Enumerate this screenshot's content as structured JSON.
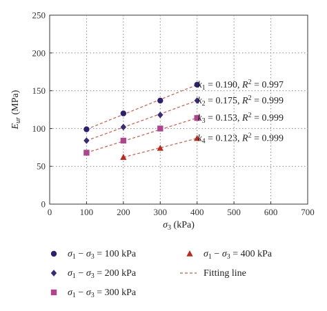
{
  "chart_data": {
    "type": "scatter",
    "xlabel_sym": "σ",
    "xlabel_sub": "3",
    "xlabel_unit": " (kPa)",
    "ylabel_sym": "E",
    "ylabel_sub": "ur",
    "ylabel_unit": " (MPa)",
    "xlim": [
      0,
      700
    ],
    "ylim": [
      0,
      250
    ],
    "xticks": [
      0,
      100,
      200,
      300,
      400,
      500,
      600,
      700
    ],
    "yticks": [
      0,
      50,
      100,
      150,
      200,
      250
    ],
    "grid": true,
    "colors": {
      "s100": "#2b2170",
      "s200": "#3a2a7a",
      "s300": "#b0448f",
      "s400": "#c0281b",
      "fit": "#e0523c"
    },
    "series": [
      {
        "name": "σ1 − σ3 = 100kPa",
        "marker": "circle",
        "color_key": "s100",
        "x": [
          100,
          200,
          300,
          400
        ],
        "y": [
          99,
          120,
          137,
          158
        ],
        "fit": [
          [
            100,
            99
          ],
          [
            400,
            158
          ]
        ]
      },
      {
        "name": "σ1 − σ3 = 200kPa",
        "marker": "diamond",
        "color_key": "s200",
        "x": [
          100,
          200,
          300,
          400
        ],
        "y": [
          84,
          102,
          118,
          137
        ],
        "fit": [
          [
            100,
            84
          ],
          [
            400,
            137
          ]
        ]
      },
      {
        "name": "σ1 − σ3 = 300kPa",
        "marker": "square",
        "color_key": "s300",
        "x": [
          100,
          200,
          300,
          400
        ],
        "y": [
          68,
          84,
          100,
          114
        ],
        "fit": [
          [
            100,
            68
          ],
          [
            400,
            114
          ]
        ]
      },
      {
        "name": "σ1 − σ3 = 400kPa",
        "marker": "triangle",
        "color_key": "s400",
        "x": [
          200,
          300,
          400
        ],
        "y": [
          62,
          74,
          87
        ],
        "fit": [
          [
            200,
            62
          ],
          [
            400,
            87
          ]
        ]
      }
    ],
    "annotations": [
      {
        "k_sub": "1",
        "k_value": "0.190",
        "r2": "0.997",
        "x": 420,
        "y": 158
      },
      {
        "k_sub": "2",
        "k_value": "0.175",
        "r2": "0.999",
        "x": 420,
        "y": 137
      },
      {
        "k_sub": "3",
        "k_value": "0.153",
        "r2": "0.999",
        "x": 420,
        "y": 114
      },
      {
        "k_sub": "4",
        "k_value": "0.123",
        "r2": "0.999",
        "x": 420,
        "y": 87
      }
    ],
    "legend": {
      "items": [
        {
          "marker": "circle",
          "color_key": "s100",
          "pre": "σ",
          "a": "1",
          "mid": " − σ",
          "b": "3",
          "post": " = 100 kPa"
        },
        {
          "marker": "triangle",
          "color_key": "s400",
          "pre": "σ",
          "a": "1",
          "mid": " − σ",
          "b": "3",
          "post": " = 400 kPa"
        },
        {
          "marker": "diamond",
          "color_key": "s200",
          "pre": "σ",
          "a": "1",
          "mid": " − σ",
          "b": "3",
          "post": " = 200 kPa"
        },
        {
          "marker": "fitline",
          "color_key": "fit",
          "pre": "Fitting line",
          "a": "",
          "mid": "",
          "b": "",
          "post": ""
        },
        {
          "marker": "square",
          "color_key": "s300",
          "pre": "σ",
          "a": "1",
          "mid": " − σ",
          "b": "3",
          "post": " = 300 kPa"
        }
      ]
    }
  }
}
